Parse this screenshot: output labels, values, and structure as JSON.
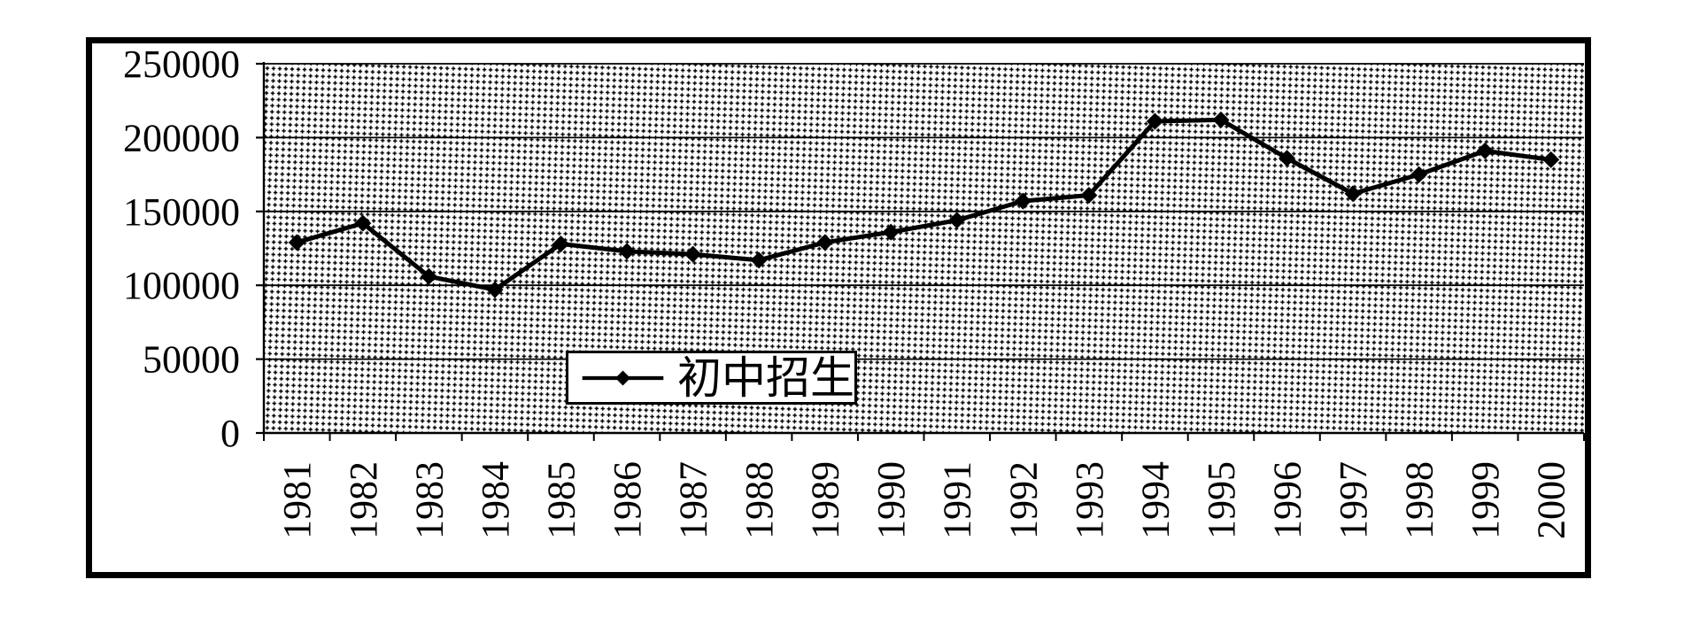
{
  "chart_data": {
    "type": "line",
    "title": "",
    "categories": [
      "1981",
      "1982",
      "1983",
      "1984",
      "1985",
      "1986",
      "1987",
      "1988",
      "1989",
      "1990",
      "1991",
      "1992",
      "1993",
      "1994",
      "1995",
      "1996",
      "1997",
      "1998",
      "1999",
      "2000"
    ],
    "series": [
      {
        "name": "初中招生",
        "values": [
          129000,
          142000,
          106000,
          97000,
          128000,
          123000,
          121000,
          117000,
          129000,
          136000,
          144000,
          157000,
          161000,
          211000,
          212000,
          186000,
          162000,
          175000,
          191000,
          185000
        ]
      }
    ],
    "xlabel": "",
    "ylabel": "",
    "ylim": [
      0,
      250000
    ],
    "y_ticks": [
      0,
      50000,
      100000,
      150000,
      200000,
      250000
    ],
    "y_tick_labels": [
      "0",
      "50000",
      "100000",
      "150000",
      "200000",
      "250000"
    ],
    "x_tick_label_rotation": -90,
    "grid": "horizontal-gridlines-on",
    "legend": {
      "label": "初中招生",
      "position": "inside-bottom-center",
      "marker": "diamond-on-line"
    },
    "marker_shape": "diamond",
    "colors": {
      "line": "#000000",
      "marker": "#000000",
      "grid": "#000000",
      "axis": "#000000",
      "background": "#ffffff",
      "frame_border": "#000000",
      "plot_fill": "black-stipple-dot-pattern-on-white"
    }
  }
}
